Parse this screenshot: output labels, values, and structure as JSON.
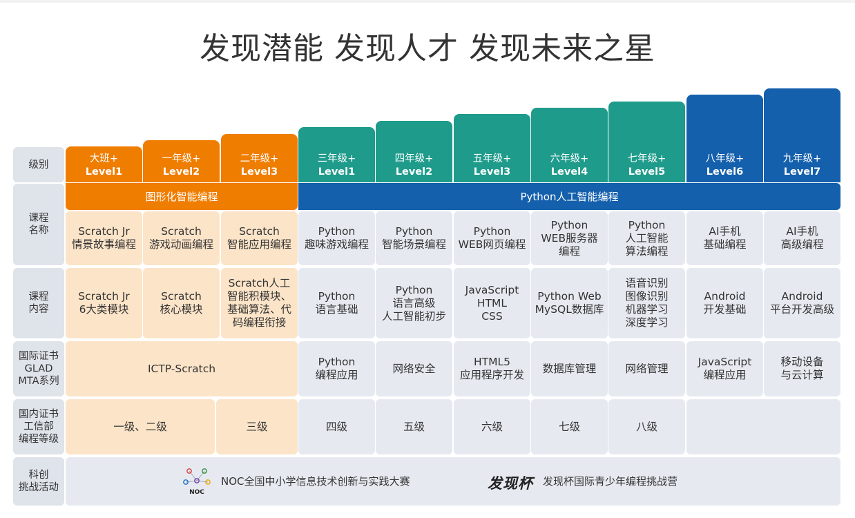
{
  "headline": "发现潜能 发现人才 发现未来之星",
  "colors": {
    "orange": "#ef7d00",
    "teal": "#1e9b8b",
    "blue": "#1460ad",
    "peach": "#fce4c8",
    "grey": "#e6eaf0",
    "label": "#dfe3ea"
  },
  "row_labels": {
    "level": "级别",
    "course_name": "课程\n名称",
    "course_content": "课程\n内容",
    "intl_cert": "国际证书\nGLAD\nMTA系列",
    "domestic_cert": "国内证书\n工信部\n编程等级",
    "activity": "科创\n挑战活动"
  },
  "levels": [
    {
      "grade": "大班+",
      "level": "Level1"
    },
    {
      "grade": "一年级+",
      "level": "Level2"
    },
    {
      "grade": "二年级+",
      "level": "Level3"
    },
    {
      "grade": "三年级+",
      "level": "Level1"
    },
    {
      "grade": "四年级+",
      "level": "Level2"
    },
    {
      "grade": "五年级+",
      "level": "Level3"
    },
    {
      "grade": "六年级+",
      "level": "Level4"
    },
    {
      "grade": "七年级+",
      "level": "Level5"
    },
    {
      "grade": "八年级+",
      "level": "Level6"
    },
    {
      "grade": "九年级+",
      "level": "Level7"
    }
  ],
  "tracks": {
    "graphical": "图形化智能编程",
    "python_ai": "Python人工智能编程"
  },
  "course_names": [
    "Scratch Jr\n情景故事编程",
    "Scratch\n游戏动画编程",
    "Scratch\n智能应用编程",
    "Python\n趣味游戏编程",
    "Python\n智能场景编程",
    "Python\nWEB网页编程",
    "Python\nWEB服务器\n编程",
    "Python\n人工智能\n算法编程",
    "AI手机\n基础编程",
    "AI手机\n高级编程"
  ],
  "course_contents": [
    "Scratch Jr\n6大类模块",
    "Scratch\n核心模块",
    "Scratch人工\n智能积模块、\n基础算法、代\n码编程衔接",
    "Python\n语言基础",
    "Python\n语言高级\n人工智能初步",
    "JavaScript\nHTML\nCSS",
    "Python Web\nMySQL数据库",
    "语音识别\n图像识别\n机器学习\n深度学习",
    "Android\n开发基础",
    "Android\n平台开发高级"
  ],
  "intl_certs": {
    "scratch": "ICTP-Scratch",
    "items": [
      "Python\n编程应用",
      "网络安全",
      "HTML5\n应用程序开发",
      "数据库管理",
      "网络管理",
      "JavaScript\n编程应用",
      "移动设备\n与云计算"
    ]
  },
  "domestic_certs": {
    "level12": "一级、二级",
    "level3": "三级",
    "items": [
      "四级",
      "五级",
      "六级",
      "七级",
      "八级"
    ]
  },
  "activities": {
    "noc_logo_text": "NOC",
    "noc": "NOC全国中小学信息技术创新与实践大赛",
    "fxb_logo_text": "发现杯",
    "fxb": "发现杯国际青少年编程挑战营"
  }
}
